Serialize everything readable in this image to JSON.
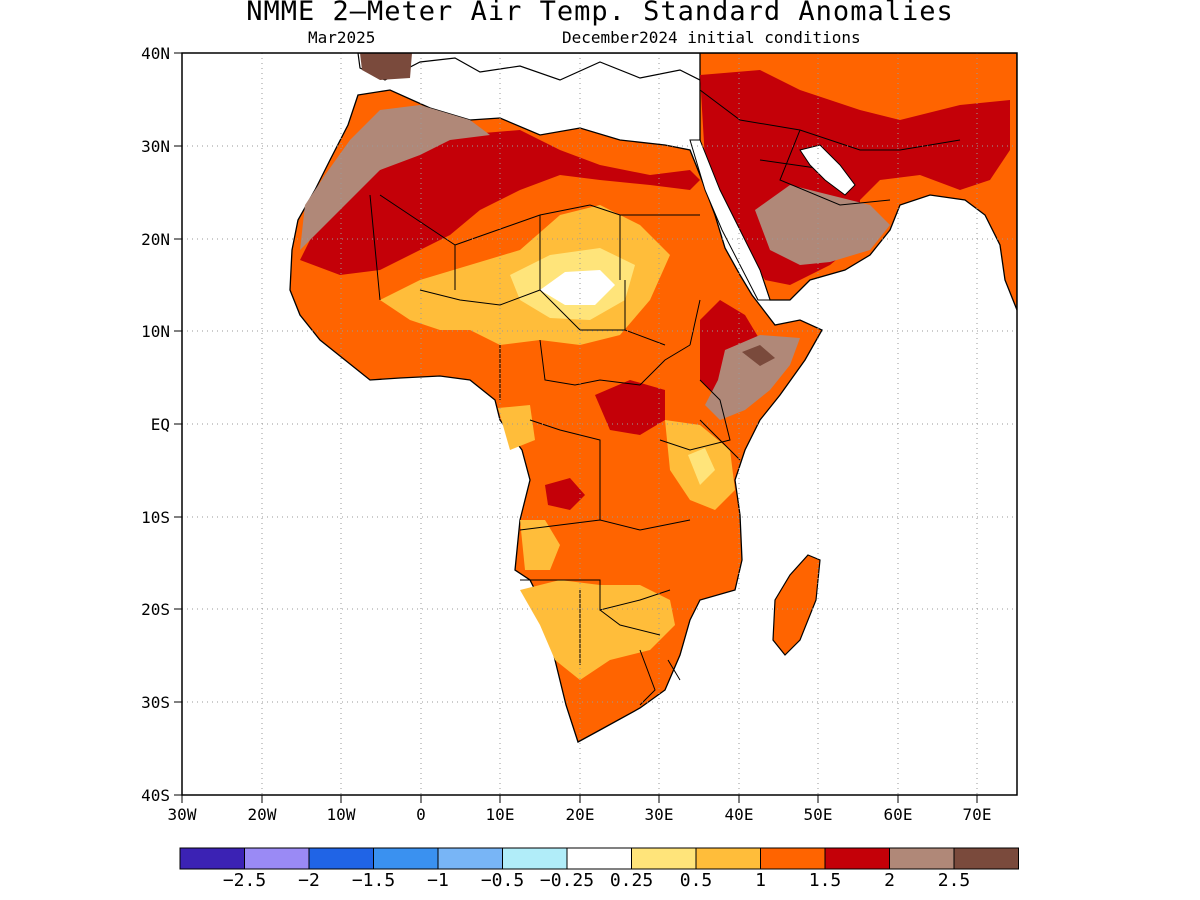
{
  "title": "NMME 2—Meter Air Temp. Standard Anomalies",
  "subtitle_left": "Mar2025",
  "subtitle_right": "December2024 initial conditions",
  "lat_labels": [
    "40N",
    "30N",
    "20N",
    "10N",
    "EQ",
    "10S",
    "20S",
    "30S",
    "40S"
  ],
  "lon_labels": [
    "30W",
    "20W",
    "10W",
    "0",
    "10E",
    "20E",
    "30E",
    "40E",
    "50E",
    "60E",
    "70E"
  ],
  "colorbar": {
    "colors": [
      "#3b22b4",
      "#9a8af5",
      "#2064e6",
      "#3a91f0",
      "#78b5f6",
      "#b1edf9",
      "#ffffff",
      "#ffe47a",
      "#ffbd3a",
      "#ff6400",
      "#c40008",
      "#b08878",
      "#7a4a3c"
    ],
    "labels": [
      "−2.5",
      "−2",
      "−1.5",
      "−1",
      "−0.5",
      "−0.25",
      "0.25",
      "0.5",
      "1",
      "1.5",
      "2",
      "2.5"
    ]
  }
}
